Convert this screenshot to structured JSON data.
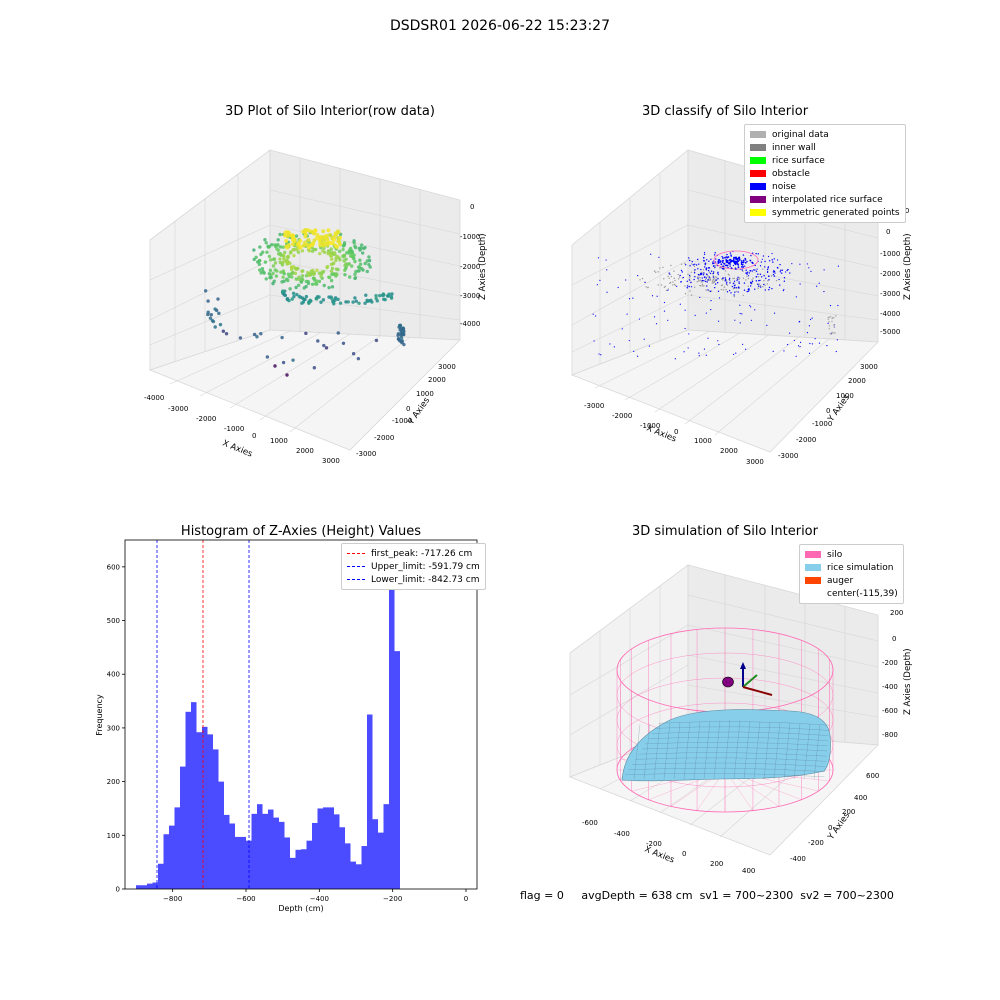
{
  "suptitle": "DSDSR01 2026-06-22 15:23:27",
  "panels": {
    "p1": {
      "title": "3D Plot of Silo Interior(row data)",
      "xlabel": "X Axies",
      "ylabel": "Y Axies",
      "zlabel": "Z Axies (Depth)",
      "xticks": [
        "-4000",
        "-3000",
        "-2000",
        "-1000",
        "0",
        "1000",
        "2000",
        "3000"
      ],
      "yticks": [
        "-3000",
        "-2000",
        "-1000",
        "0",
        "1000",
        "2000",
        "3000"
      ],
      "zticks": [
        "0",
        "-1000",
        "-2000",
        "-3000",
        "-4000"
      ]
    },
    "p2": {
      "title": "3D classify of Silo Interior",
      "xlabel": "X Axies",
      "ylabel": "Y Axies",
      "zlabel": "Z Axies (Depth)",
      "xticks": [
        "-3000",
        "-2000",
        "-1000",
        "0",
        "1000",
        "2000",
        "3000"
      ],
      "yticks": [
        "-3000",
        "-2000",
        "-1000",
        "0",
        "1000",
        "2000",
        "3000"
      ],
      "zticks": [
        "0",
        "-1000",
        "-2000",
        "-3000",
        "-4000",
        "-5000"
      ],
      "ztick_partial": "000"
    },
    "p4": {
      "title": "3D simulation of Silo Interior",
      "xlabel": "X Axies",
      "ylabel": "Y Axies",
      "zlabel": "Z Axies (Depth)",
      "xticks": [
        "-600",
        "-400",
        "-200",
        "0",
        "200",
        "400"
      ],
      "yticks": [
        "-400",
        "-200",
        "0",
        "200",
        "400",
        "600"
      ],
      "zticks": [
        "200",
        "0",
        "-200",
        "-400",
        "-600",
        "-800"
      ]
    }
  },
  "legend2": [
    {
      "label": "original data",
      "color": "#b0b0b0"
    },
    {
      "label": "inner wall",
      "color": "#808080"
    },
    {
      "label": "rice surface",
      "color": "#00ff00"
    },
    {
      "label": "obstacle",
      "color": "#ff0000"
    },
    {
      "label": "noise",
      "color": "#0000ff"
    },
    {
      "label": "interpolated rice surface",
      "color": "#800080"
    },
    {
      "label": "symmetric generated points",
      "color": "#ffff00"
    }
  ],
  "legend3": [
    {
      "label": "first_peak: -717.26 cm",
      "color": "#ff0000"
    },
    {
      "label": "Upper_limit: -591.79 cm",
      "color": "#0000ff"
    },
    {
      "label": "Lower_limit: -842.73 cm",
      "color": "#0000ff"
    }
  ],
  "legend4": [
    {
      "label": "silo",
      "color": "#ff69b4"
    },
    {
      "label": "rice simulation",
      "color": "#87ceeb"
    },
    {
      "label": "auger",
      "color": "#ff4500"
    },
    {
      "label": "center(-115,39)",
      "color": ""
    }
  ],
  "status": {
    "flag": "flag = 0",
    "avg": "avgDepth = 638 cm",
    "sv1": "sv1 = 700~2300",
    "sv2": "sv2 = 700~2300"
  },
  "chart_data": [
    {
      "type": "scatter",
      "title": "3D Plot of Silo Interior(row data)",
      "note": "3D scatter point cloud of silo interior colored by depth",
      "xlim": [
        -4000,
        3000
      ],
      "ylim": [
        -3000,
        3000
      ],
      "zlim": [
        -4500,
        0
      ]
    },
    {
      "type": "scatter",
      "title": "3D classify of Silo Interior",
      "note": "3D classified point cloud",
      "xlim": [
        -3000,
        3000
      ],
      "ylim": [
        -3000,
        3000
      ],
      "zlim": [
        -5000,
        0
      ]
    },
    {
      "type": "bar",
      "title": "Histogram of Z-Axies (Height) Values",
      "xlabel": "Depth (cm)",
      "ylabel": "Frequency",
      "xlim": [
        -930,
        30
      ],
      "ylim": [
        0,
        650
      ],
      "xticks": [
        -800,
        -600,
        -400,
        -200,
        0
      ],
      "yticks": [
        0,
        100,
        200,
        300,
        400,
        500,
        600
      ],
      "bin_width": 15,
      "bin_start": -900,
      "values": [
        7,
        7,
        10,
        12,
        47,
        102,
        118,
        152,
        228,
        330,
        348,
        292,
        302,
        288,
        260,
        200,
        138,
        122,
        97,
        97,
        90,
        140,
        158,
        140,
        148,
        133,
        125,
        96,
        58,
        73,
        74,
        90,
        123,
        150,
        152,
        152,
        139,
        115,
        85,
        51,
        46,
        80,
        325,
        130,
        105,
        158,
        616,
        443
      ],
      "vlines": [
        {
          "name": "first_peak",
          "x": -717.26,
          "color": "#ff0000"
        },
        {
          "name": "Upper_limit",
          "x": -591.79,
          "color": "#0000ff"
        },
        {
          "name": "Lower_limit",
          "x": -842.73,
          "color": "#0000ff"
        }
      ],
      "bar_color": "#4b4bff",
      "legend_position": "top-right"
    },
    {
      "type": "area",
      "title": "3D simulation of Silo Interior",
      "note": "3D cylinder wireframe with simulated rice surface",
      "xlim": [
        -700,
        500
      ],
      "ylim": [
        -500,
        700
      ],
      "zlim": [
        -900,
        300
      ]
    }
  ]
}
